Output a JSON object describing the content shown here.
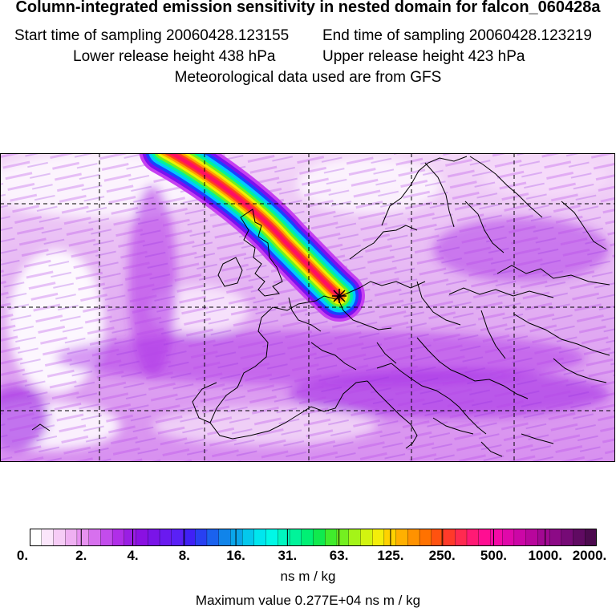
{
  "header": {
    "title": "Column-integrated emission sensitivity in nested domain for falcon_060428a",
    "start_label": "Start time of sampling 20060428.123155",
    "end_label": "End time of sampling 20060428.123219",
    "lower_label": "Lower release height  438 hPa",
    "upper_label": "Upper release height  423 hPa",
    "met_label": "Meteorological data used are from GFS"
  },
  "colorbar": {
    "tick_labels": [
      "0.",
      "2.",
      "4.",
      "8.",
      "16.",
      "31.",
      "63.",
      "125.",
      "250.",
      "500.",
      "1000.",
      "2000."
    ],
    "colors": [
      "#ffffff",
      "#fbe6fb",
      "#f6ccf6",
      "#efb0f2",
      "#e792f0",
      "#d770ee",
      "#c34cec",
      "#b02ee8",
      "#9a1ee4",
      "#8a10e2",
      "#7a14e8",
      "#6a1af0",
      "#5a20f6",
      "#4020f6",
      "#2840f2",
      "#1a62ee",
      "#1084ea",
      "#0aa6ea",
      "#04c8ec",
      "#00e6ee",
      "#00f8e6",
      "#00f6c0",
      "#00f49a",
      "#00f074",
      "#10ea4e",
      "#40ec2c",
      "#74f020",
      "#a4f418",
      "#d2f410",
      "#f4ee0a",
      "#ffd200",
      "#ffb000",
      "#ff9200",
      "#ff7200",
      "#ff5210",
      "#ff3a2a",
      "#ff2a50",
      "#ff1a74",
      "#ff0e92",
      "#f40aa6",
      "#e008aa",
      "#cc06a6",
      "#b8069c",
      "#a20892",
      "#8c0a86",
      "#760a76",
      "#600a62",
      "#4c0a4e"
    ],
    "units": "ns m / kg",
    "max_value_label": "Maximum value  0.277E+04 ns m / kg"
  },
  "map": {
    "grid_color": "#000000",
    "coast_color": "#000000",
    "background_color": "#ffffff",
    "plume_colors": [
      "#c640f0",
      "#7a10f0",
      "#1a40ff",
      "#00c8ff",
      "#00f0a0",
      "#70f020",
      "#f0f000",
      "#ffa000",
      "#ff4020",
      "#ff1060"
    ]
  }
}
